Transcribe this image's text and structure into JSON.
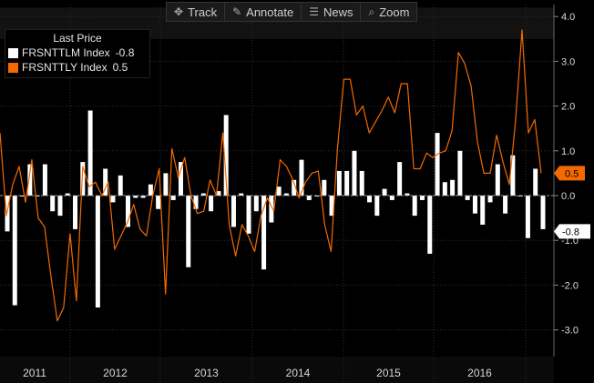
{
  "toolbar": {
    "track": "Track",
    "annotate": "Annotate",
    "news": "News",
    "zoom": "Zoom"
  },
  "legend": {
    "title": "Last Price",
    "series": [
      {
        "name": "FRSNTTLM Index",
        "value": "-0.8",
        "color": "#ffffff"
      },
      {
        "name": "FRSNTTLY Index",
        "value": "0.5",
        "color": "#f46a00"
      }
    ]
  },
  "chart_data": {
    "type": "bar+line",
    "x_labels": [
      "2011",
      "2012",
      "2013",
      "2014",
      "2015",
      "2016"
    ],
    "ylim": [
      -3.5,
      4.2
    ],
    "y_ticks": [
      "-3.0",
      "-2.0",
      "-1.0",
      "0.0",
      "1.0",
      "2.0",
      "3.0",
      "4.0"
    ],
    "last_labels": {
      "orange": "0.5",
      "white": "-0.8"
    },
    "series": [
      {
        "name": "FRSNTTLM Index",
        "kind": "bar",
        "color": "#ffffff",
        "values": [
          -0.8,
          -2.45,
          0.0,
          0.7,
          0.0,
          0.7,
          -0.35,
          -0.45,
          0.05,
          -0.75,
          0.75,
          1.9,
          -2.5,
          0.6,
          -0.15,
          0.45,
          -0.7,
          -0.05,
          -0.05,
          0.25,
          -0.3,
          0.5,
          -0.1,
          0.75,
          -1.6,
          -0.3,
          0.05,
          -0.35,
          0.1,
          1.8,
          -0.7,
          0.05,
          -0.85,
          -0.35,
          -1.65,
          -0.6,
          0.2,
          0.05,
          0.35,
          0.8,
          -0.1,
          0.0,
          0.35,
          -0.45,
          0.55,
          0.55,
          1.0,
          0.55,
          -0.15,
          -0.45,
          0.15,
          -0.1,
          0.75,
          0.05,
          -0.45,
          -0.1,
          -1.3,
          1.4,
          0.3,
          0.35,
          1.0,
          -0.1,
          -0.4,
          -0.65,
          -0.15,
          0.7,
          -0.4,
          0.9,
          0.0,
          -0.95,
          0.6,
          -0.75
        ]
      },
      {
        "name": "FRSNTTLY Index",
        "kind": "line",
        "color": "#f46a00",
        "values": [
          1.4,
          -0.45,
          0.25,
          0.65,
          -0.15,
          0.8,
          -0.5,
          -0.7,
          -1.8,
          -2.8,
          -2.5,
          -0.85,
          -2.35,
          0.65,
          0.2,
          0.3,
          0.0,
          0.3,
          -1.2,
          -0.9,
          -0.6,
          -0.2,
          -0.75,
          -0.9,
          0.0,
          0.6,
          -2.2,
          1.05,
          0.4,
          0.85,
          0.0,
          -0.4,
          -0.35,
          0.35,
          0.0,
          1.4,
          -0.65,
          -1.35,
          -0.65,
          -0.9,
          -1.25,
          -0.45,
          -0.05,
          -0.35,
          0.8,
          0.65,
          0.35,
          -0.05,
          0.3,
          0.5,
          0.55,
          -0.65,
          -1.25,
          1.05,
          2.6,
          2.6,
          1.8,
          2.0,
          1.4,
          1.65,
          1.9,
          2.2,
          1.85,
          2.5,
          2.5,
          0.6,
          0.6,
          0.95,
          0.85,
          0.95,
          1.0,
          1.45,
          3.2,
          2.95,
          2.45,
          1.2,
          0.5,
          0.5,
          1.35,
          0.75,
          0.25,
          1.7,
          3.7,
          1.4,
          1.7,
          0.5
        ]
      }
    ]
  }
}
